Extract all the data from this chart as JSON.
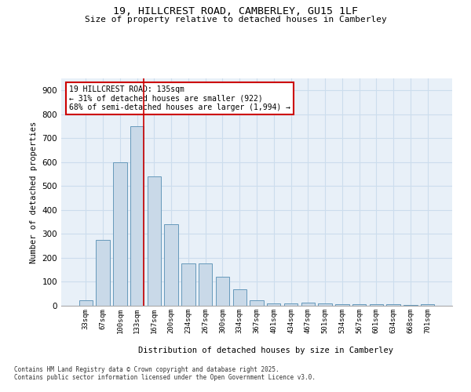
{
  "title_line1": "19, HILLCREST ROAD, CAMBERLEY, GU15 1LF",
  "title_line2": "Size of property relative to detached houses in Camberley",
  "xlabel": "Distribution of detached houses by size in Camberley",
  "ylabel": "Number of detached properties",
  "categories": [
    "33sqm",
    "67sqm",
    "100sqm",
    "133sqm",
    "167sqm",
    "200sqm",
    "234sqm",
    "267sqm",
    "300sqm",
    "334sqm",
    "367sqm",
    "401sqm",
    "434sqm",
    "467sqm",
    "501sqm",
    "534sqm",
    "567sqm",
    "601sqm",
    "634sqm",
    "668sqm",
    "701sqm"
  ],
  "values": [
    22,
    275,
    600,
    750,
    540,
    340,
    178,
    178,
    120,
    70,
    22,
    10,
    10,
    12,
    10,
    5,
    5,
    5,
    5,
    3,
    5
  ],
  "bar_color": "#c9d9e8",
  "bar_edge_color": "#6699bb",
  "grid_color": "#ccdded",
  "background_color": "#e8f0f8",
  "red_line_index": 3,
  "annotation_text": "19 HILLCREST ROAD: 135sqm\n← 31% of detached houses are smaller (922)\n68% of semi-detached houses are larger (1,994) →",
  "annotation_box_color": "#ffffff",
  "annotation_box_edge": "#cc0000",
  "ylim": [
    0,
    950
  ],
  "yticks": [
    0,
    100,
    200,
    300,
    400,
    500,
    600,
    700,
    800,
    900
  ],
  "footer_line1": "Contains HM Land Registry data © Crown copyright and database right 2025.",
  "footer_line2": "Contains public sector information licensed under the Open Government Licence v3.0."
}
